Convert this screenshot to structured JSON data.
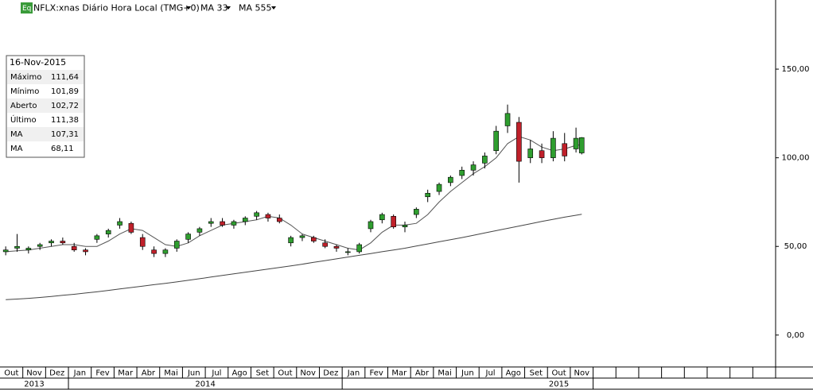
{
  "chart_data": {
    "type": "candlestick",
    "symbol": "NFLX:xnas Diário Hora Local (TMG+0)",
    "icon": "Eq",
    "indicators": [
      "MA 33",
      "MA 555"
    ],
    "info_box": {
      "date": "16-Nov-2015",
      "rows": [
        [
          "Máximo",
          "111,64"
        ],
        [
          "Mínimo",
          "101,89"
        ],
        [
          "Aberto",
          "102,72"
        ],
        [
          "Último",
          "111,38"
        ],
        [
          "MA",
          "107,31"
        ],
        [
          "MA",
          "68,11"
        ]
      ]
    },
    "months": [
      [
        "Out",
        "Nov",
        "Dez"
      ],
      [
        "Jan",
        "Fev",
        "Mar",
        "Abr",
        "Mai",
        "Jun",
        "Jul",
        "Ago",
        "Set",
        "Out",
        "Nov",
        "Dez"
      ],
      [
        "Jan",
        "Fev",
        "Mar",
        "Abr",
        "Mai",
        "Jun",
        "Jul",
        "Ago",
        "Set",
        "Out",
        "Nov"
      ]
    ],
    "years": [
      "2013",
      "2014",
      "2015"
    ],
    "xlim": [
      0,
      34
    ],
    "ylim": [
      -18,
      189
    ],
    "yticks": [
      {
        "value": 0,
        "label": "0,00"
      },
      {
        "value": 50,
        "label": "50,00"
      },
      {
        "value": 100,
        "label": "100,00"
      },
      {
        "value": 150,
        "label": "150,00"
      }
    ],
    "up_color": "#2f9e2f",
    "down_color": "#c0202a",
    "x": [
      0.25,
      0.75,
      1.25,
      1.75,
      2.25,
      2.75,
      3.25,
      3.75,
      4.25,
      4.75,
      5.25,
      5.75,
      6.25,
      6.75,
      7.25,
      7.75,
      8.25,
      8.75,
      9.25,
      9.75,
      10.25,
      10.75,
      11.25,
      11.75,
      12.25,
      12.75,
      13.25,
      13.75,
      14.25,
      14.75,
      15.25,
      15.75,
      16.25,
      16.75,
      17.25,
      17.75,
      18.25,
      18.75,
      19.25,
      19.75,
      20.25,
      20.75,
      21.25,
      21.75,
      22.25,
      22.75,
      23.25,
      23.75,
      24.25,
      24.75,
      25.25,
      25.5
    ],
    "open": [
      47,
      49,
      48,
      50,
      52,
      53,
      50,
      48,
      54,
      57,
      62,
      63,
      55,
      48,
      46,
      49,
      54,
      58,
      63,
      64,
      62,
      64,
      67,
      68,
      66,
      52,
      55,
      55,
      52,
      50,
      47,
      47,
      60,
      65,
      67,
      61,
      68,
      78,
      81,
      86,
      90,
      93,
      97,
      104,
      118,
      120,
      100,
      104,
      100,
      108,
      105,
      102.72
    ],
    "high": [
      50,
      57,
      50,
      52,
      54,
      55,
      52,
      49,
      57,
      60,
      66,
      64,
      57,
      50,
      49,
      54,
      58,
      61,
      66,
      66,
      65,
      67,
      70,
      69,
      68,
      56,
      57,
      56,
      54,
      51,
      49,
      52,
      65,
      69,
      68,
      64,
      72,
      82,
      86,
      90,
      95,
      98,
      103,
      118,
      130,
      123,
      110,
      108,
      115,
      114,
      117,
      111.64
    ],
    "low": [
      45,
      47,
      46,
      48,
      50,
      51,
      47,
      45,
      52,
      55,
      60,
      57,
      48,
      44,
      44,
      47,
      52,
      56,
      61,
      61,
      60,
      62,
      65,
      64,
      63,
      50,
      53,
      52,
      49,
      47,
      45,
      46,
      58,
      63,
      60,
      58,
      66,
      75,
      79,
      84,
      88,
      90,
      94,
      102,
      114,
      86,
      97,
      97,
      98,
      98,
      103,
      101.89
    ],
    "close": [
      48,
      50,
      49,
      51,
      53,
      52,
      48,
      47,
      56,
      59,
      64,
      58,
      50,
      46,
      48,
      53,
      57,
      60,
      64,
      62,
      64,
      66,
      69,
      66,
      64,
      55,
      56,
      53,
      50,
      49,
      47,
      51,
      64,
      68,
      61,
      62,
      71,
      80,
      85,
      89,
      93,
      96,
      101,
      115,
      125,
      98,
      105,
      100,
      111,
      101,
      111,
      111.38
    ],
    "series": [
      {
        "name": "MA 33",
        "color": "#555555",
        "values": [
          47,
          47.5,
          48,
          49,
          50,
          51,
          51,
          50,
          50,
          53,
          57,
          60,
          59,
          55,
          51,
          50,
          52,
          56,
          59,
          62,
          63,
          64,
          65,
          67,
          66,
          62,
          57,
          55,
          53,
          51,
          49,
          48,
          52,
          58,
          62,
          62,
          63,
          68,
          75,
          81,
          86,
          91,
          95,
          100,
          108,
          112,
          110,
          106,
          104,
          105,
          107,
          107.31
        ]
      },
      {
        "name": "MA 555",
        "color": "#444444",
        "values": [
          20,
          20.3,
          20.7,
          21.2,
          21.8,
          22.4,
          23,
          23.7,
          24.4,
          25.2,
          26,
          26.8,
          27.6,
          28.4,
          29.2,
          30,
          30.9,
          31.8,
          32.7,
          33.6,
          34.5,
          35.4,
          36.3,
          37.2,
          38.1,
          39,
          40,
          41,
          42,
          43,
          44,
          45,
          46,
          47,
          48,
          49,
          50.2,
          51.4,
          52.6,
          53.8,
          55,
          56.3,
          57.6,
          58.9,
          60.2,
          61.5,
          62.8,
          64.1,
          65.3,
          66.5,
          67.6,
          68.11
        ]
      }
    ]
  }
}
